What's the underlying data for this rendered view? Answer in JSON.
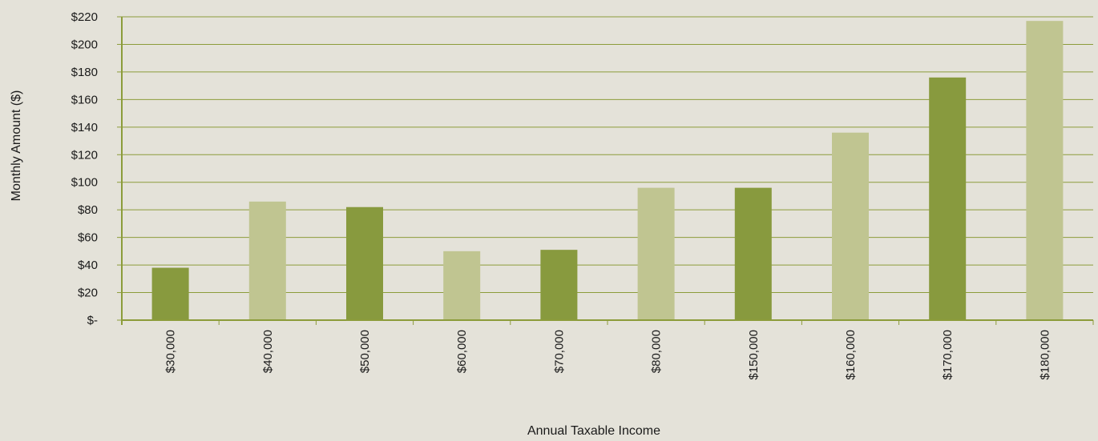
{
  "chart_data": {
    "type": "bar",
    "title": "",
    "xlabel": "Annual Taxable Income",
    "ylabel": "Monthly Amount ($)",
    "categories": [
      "$30,000",
      "$40,000",
      "$50,000",
      "$60,000",
      "$70,000",
      "$80,000",
      "$150,000",
      "$160,000",
      "$170,000",
      "$180,000"
    ],
    "values": [
      38,
      86,
      82,
      50,
      51,
      96,
      96,
      136,
      176,
      217
    ],
    "ylim": [
      0,
      220
    ],
    "yticks": [
      0,
      20,
      40,
      60,
      80,
      100,
      120,
      140,
      160,
      180,
      200,
      220
    ],
    "ytick_labels": [
      "$-",
      "$20",
      "$40",
      "$60",
      "$80",
      "$100",
      "$120",
      "$140",
      "$160",
      "$180",
      "$200",
      "$220"
    ],
    "grid": true,
    "legend": "none",
    "colors": {
      "dark_bar": "#889a3e",
      "light_bar": "#c0c591",
      "grid": "#8c9c3a",
      "axis": "#8c9c3a",
      "background": "#e4e2d9"
    },
    "bar_color_pattern": [
      "dark",
      "light",
      "dark",
      "light",
      "dark",
      "light",
      "dark",
      "light",
      "dark",
      "light"
    ]
  }
}
